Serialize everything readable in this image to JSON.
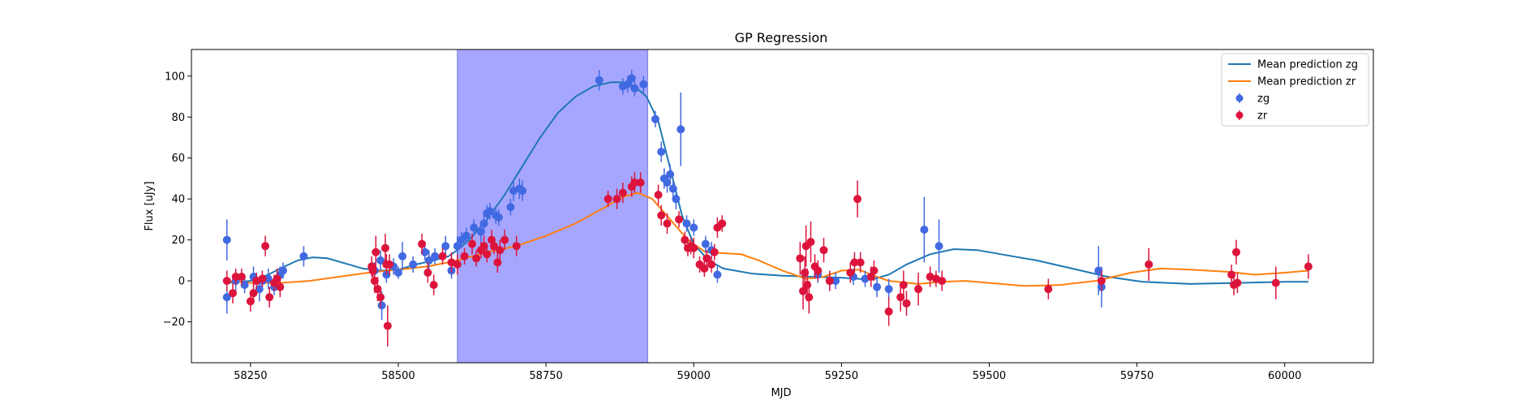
{
  "chart_data": {
    "type": "scatter",
    "title": "GP Regression",
    "xlabel": "MJD",
    "ylabel": "Flux [uJy]",
    "xlim": [
      58150,
      60150
    ],
    "ylim": [
      -40,
      113
    ],
    "xticks": [
      58250,
      58500,
      58750,
      59000,
      59250,
      59500,
      59750,
      60000
    ],
    "yticks": [
      -20,
      0,
      20,
      40,
      60,
      80,
      100
    ],
    "grid": false,
    "legend_position": "top-right",
    "highlight_span": {
      "x0": 58600,
      "x1": 58922,
      "color": "#a6a6ff"
    },
    "series": [
      {
        "name": "Mean prediction zg",
        "kind": "line",
        "color": "#1f77b4",
        "points": [
          [
            58210,
            -1
          ],
          [
            58250,
            0
          ],
          [
            58280,
            3
          ],
          [
            58300,
            6
          ],
          [
            58330,
            10
          ],
          [
            58355,
            11.5
          ],
          [
            58380,
            11
          ],
          [
            58410,
            8.5
          ],
          [
            58440,
            6
          ],
          [
            58470,
            5
          ],
          [
            58500,
            5.5
          ],
          [
            58530,
            8
          ],
          [
            58560,
            10
          ],
          [
            58585,
            12
          ],
          [
            58600,
            15
          ],
          [
            58620,
            20
          ],
          [
            58650,
            30
          ],
          [
            58680,
            42
          ],
          [
            58710,
            56
          ],
          [
            58740,
            70
          ],
          [
            58770,
            82
          ],
          [
            58800,
            90
          ],
          [
            58830,
            95
          ],
          [
            58860,
            97
          ],
          [
            58880,
            97
          ],
          [
            58900,
            95
          ],
          [
            58920,
            90
          ],
          [
            58940,
            78
          ],
          [
            58960,
            55
          ],
          [
            58980,
            32
          ],
          [
            59000,
            18
          ],
          [
            59025,
            10
          ],
          [
            59050,
            6
          ],
          [
            59100,
            3.5
          ],
          [
            59150,
            2.5
          ],
          [
            59200,
            2
          ],
          [
            59250,
            1.5
          ],
          [
            59280,
            1
          ],
          [
            59300,
            0.5
          ],
          [
            59330,
            3
          ],
          [
            59360,
            8
          ],
          [
            59400,
            13
          ],
          [
            59440,
            15.5
          ],
          [
            59480,
            15
          ],
          [
            59520,
            13
          ],
          [
            59580,
            10
          ],
          [
            59640,
            6
          ],
          [
            59700,
            2
          ],
          [
            59760,
            -0.5
          ],
          [
            59840,
            -1.5
          ],
          [
            59920,
            -1
          ],
          [
            60000,
            -0.5
          ],
          [
            60040,
            -0.5
          ]
        ]
      },
      {
        "name": "Mean prediction zr",
        "kind": "line",
        "color": "#ff7f0e",
        "points": [
          [
            58210,
            0
          ],
          [
            58250,
            -1
          ],
          [
            58300,
            -1
          ],
          [
            58350,
            0
          ],
          [
            58400,
            2
          ],
          [
            58450,
            4
          ],
          [
            58500,
            5.5
          ],
          [
            58550,
            7
          ],
          [
            58600,
            10
          ],
          [
            58650,
            14
          ],
          [
            58700,
            17
          ],
          [
            58750,
            22
          ],
          [
            58800,
            28
          ],
          [
            58850,
            36
          ],
          [
            58880,
            41
          ],
          [
            58905,
            43
          ],
          [
            58930,
            40
          ],
          [
            58960,
            30
          ],
          [
            58990,
            20
          ],
          [
            59020,
            14
          ],
          [
            59050,
            13.5
          ],
          [
            59080,
            13
          ],
          [
            59110,
            10
          ],
          [
            59150,
            5
          ],
          [
            59190,
            1
          ],
          [
            59220,
            2
          ],
          [
            59250,
            5
          ],
          [
            59280,
            5.5
          ],
          [
            59300,
            3
          ],
          [
            59330,
            0
          ],
          [
            59380,
            -1.5
          ],
          [
            59420,
            -0.5
          ],
          [
            59460,
            0
          ],
          [
            59500,
            -1
          ],
          [
            59560,
            -2.5
          ],
          [
            59620,
            -2
          ],
          [
            59680,
            0
          ],
          [
            59740,
            4
          ],
          [
            59790,
            6
          ],
          [
            59840,
            5.5
          ],
          [
            59900,
            4.5
          ],
          [
            59950,
            3
          ],
          [
            60000,
            4
          ],
          [
            60040,
            5
          ]
        ]
      },
      {
        "name": "zg",
        "kind": "errorbar",
        "color": "#4169e1",
        "points": [
          [
            58210,
            20,
            10
          ],
          [
            58210,
            -8,
            8
          ],
          [
            58225,
            0,
            5
          ],
          [
            58240,
            -2,
            4
          ],
          [
            58255,
            2,
            5
          ],
          [
            58265,
            -4,
            6
          ],
          [
            58270,
            0,
            4
          ],
          [
            58280,
            1,
            5
          ],
          [
            58290,
            -3,
            4
          ],
          [
            58300,
            3,
            4
          ],
          [
            58305,
            5,
            4
          ],
          [
            58340,
            12,
            5
          ],
          [
            58460,
            5,
            4
          ],
          [
            58470,
            10,
            5
          ],
          [
            58472,
            -12,
            7
          ],
          [
            58480,
            3,
            4
          ],
          [
            58492,
            7,
            4
          ],
          [
            58500,
            4,
            3
          ],
          [
            58507,
            12,
            7
          ],
          [
            58525,
            8,
            4
          ],
          [
            58545,
            14,
            4
          ],
          [
            58552,
            10,
            5
          ],
          [
            58562,
            12,
            4
          ],
          [
            58580,
            17,
            5
          ],
          [
            58590,
            5,
            4
          ],
          [
            58600,
            17,
            5
          ],
          [
            58607,
            20,
            4
          ],
          [
            58615,
            22,
            4
          ],
          [
            58628,
            26,
            4
          ],
          [
            58640,
            24,
            5
          ],
          [
            58645,
            28,
            4
          ],
          [
            58650,
            33,
            4
          ],
          [
            58655,
            34,
            4
          ],
          [
            58665,
            32,
            4
          ],
          [
            58670,
            31,
            4
          ],
          [
            58690,
            36,
            4
          ],
          [
            58695,
            44,
            5
          ],
          [
            58705,
            45,
            5
          ],
          [
            58710,
            44,
            5
          ],
          [
            58840,
            98,
            5
          ],
          [
            58880,
            95,
            4
          ],
          [
            58888,
            96,
            4
          ],
          [
            58895,
            99,
            4
          ],
          [
            58900,
            94,
            4
          ],
          [
            58915,
            96,
            4
          ],
          [
            58935,
            79,
            4
          ],
          [
            58945,
            63,
            5
          ],
          [
            58950,
            50,
            5
          ],
          [
            58955,
            48,
            5
          ],
          [
            58960,
            52,
            5
          ],
          [
            58965,
            45,
            4
          ],
          [
            58970,
            40,
            5
          ],
          [
            58978,
            74,
            18
          ],
          [
            58988,
            28,
            4
          ],
          [
            59000,
            26,
            4
          ],
          [
            59020,
            18,
            4
          ],
          [
            59030,
            15,
            4
          ],
          [
            59040,
            3,
            4
          ],
          [
            59210,
            3,
            4
          ],
          [
            59230,
            0,
            4
          ],
          [
            59240,
            0,
            4
          ],
          [
            59270,
            2,
            4
          ],
          [
            59290,
            1,
            4
          ],
          [
            59310,
            -3,
            5
          ],
          [
            59330,
            -4,
            5
          ],
          [
            59390,
            25,
            16
          ],
          [
            59415,
            17,
            13
          ],
          [
            59685,
            5,
            12
          ],
          [
            59690,
            -3,
            10
          ]
        ]
      },
      {
        "name": "zr",
        "kind": "errorbar",
        "color": "#dc143c",
        "points": [
          [
            58210,
            0,
            5
          ],
          [
            58220,
            -6,
            5
          ],
          [
            58225,
            2,
            4
          ],
          [
            58235,
            2,
            4
          ],
          [
            58250,
            -10,
            5
          ],
          [
            58255,
            -6,
            5
          ],
          [
            58260,
            0,
            4
          ],
          [
            58270,
            1,
            4
          ],
          [
            58275,
            17,
            5
          ],
          [
            58282,
            -8,
            5
          ],
          [
            58290,
            -1,
            4
          ],
          [
            58295,
            1,
            5
          ],
          [
            58300,
            -3,
            5
          ],
          [
            58455,
            7,
            5
          ],
          [
            58457,
            5,
            4
          ],
          [
            58460,
            0,
            6
          ],
          [
            58462,
            14,
            8
          ],
          [
            58465,
            -4,
            6
          ],
          [
            58470,
            -8,
            5
          ],
          [
            58478,
            16,
            7
          ],
          [
            58480,
            8,
            5
          ],
          [
            58482,
            -22,
            10
          ],
          [
            58485,
            8,
            5
          ],
          [
            58540,
            18,
            5
          ],
          [
            58550,
            4,
            5
          ],
          [
            58560,
            -2,
            5
          ],
          [
            58575,
            12,
            4
          ],
          [
            58590,
            9,
            5
          ],
          [
            58600,
            8,
            5
          ],
          [
            58612,
            12,
            4
          ],
          [
            58625,
            18,
            5
          ],
          [
            58632,
            11,
            4
          ],
          [
            58640,
            15,
            4
          ],
          [
            58645,
            17,
            5
          ],
          [
            58650,
            13,
            4
          ],
          [
            58658,
            20,
            5
          ],
          [
            58662,
            17,
            4
          ],
          [
            58668,
            9,
            5
          ],
          [
            58672,
            15,
            5
          ],
          [
            58680,
            20,
            5
          ],
          [
            58700,
            17,
            5
          ],
          [
            58855,
            40,
            4
          ],
          [
            58870,
            40,
            5
          ],
          [
            58880,
            43,
            5
          ],
          [
            58895,
            46,
            5
          ],
          [
            58900,
            48,
            5
          ],
          [
            58910,
            48,
            5
          ],
          [
            58940,
            42,
            5
          ],
          [
            58945,
            32,
            5
          ],
          [
            58955,
            28,
            5
          ],
          [
            58975,
            30,
            4
          ],
          [
            58985,
            20,
            4
          ],
          [
            58990,
            16,
            4
          ],
          [
            58995,
            17,
            4
          ],
          [
            59000,
            16,
            5
          ],
          [
            59010,
            8,
            4
          ],
          [
            59018,
            6,
            4
          ],
          [
            59022,
            11,
            4
          ],
          [
            59030,
            8,
            4
          ],
          [
            59035,
            14,
            4
          ],
          [
            59040,
            26,
            5
          ],
          [
            59048,
            28,
            4
          ],
          [
            59180,
            11,
            8
          ],
          [
            59185,
            -5,
            9
          ],
          [
            59188,
            4,
            8
          ],
          [
            59190,
            17,
            10
          ],
          [
            59192,
            -2,
            8
          ],
          [
            59195,
            -8,
            8
          ],
          [
            59198,
            19,
            10
          ],
          [
            59205,
            7,
            6
          ],
          [
            59210,
            5,
            5
          ],
          [
            59220,
            15,
            6
          ],
          [
            59230,
            0,
            5
          ],
          [
            59265,
            4,
            5
          ],
          [
            59272,
            9,
            5
          ],
          [
            59277,
            40,
            9
          ],
          [
            59282,
            9,
            5
          ],
          [
            59300,
            2,
            5
          ],
          [
            59305,
            5,
            5
          ],
          [
            59330,
            -15,
            7
          ],
          [
            59350,
            -8,
            7
          ],
          [
            59355,
            -2,
            7
          ],
          [
            59360,
            -11,
            6
          ],
          [
            59380,
            -4,
            8
          ],
          [
            59400,
            2,
            5
          ],
          [
            59410,
            1,
            4
          ],
          [
            59420,
            0,
            5
          ],
          [
            59600,
            -4,
            5
          ],
          [
            59690,
            0,
            5
          ],
          [
            59770,
            8,
            8
          ],
          [
            59910,
            3,
            5
          ],
          [
            59914,
            -2,
            5
          ],
          [
            59918,
            14,
            6
          ],
          [
            59920,
            -1,
            5
          ],
          [
            59985,
            -1,
            8
          ],
          [
            60040,
            7,
            6
          ]
        ]
      }
    ]
  }
}
